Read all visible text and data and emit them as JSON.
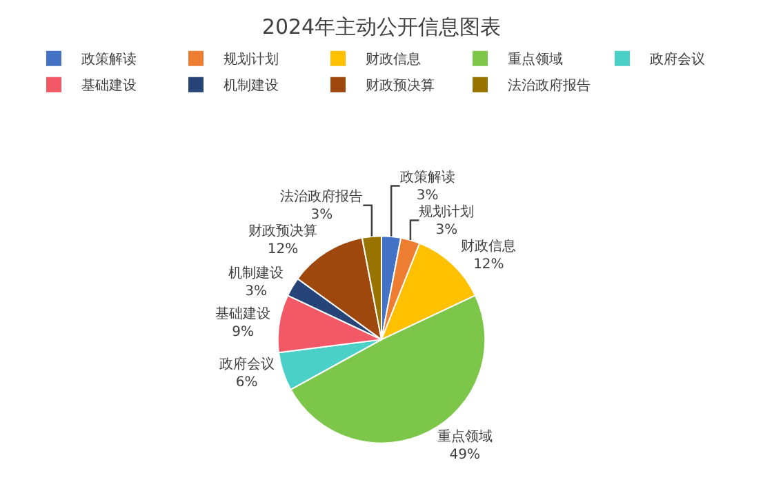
{
  "chart_data": {
    "type": "pie",
    "title": "2024年主动公开信息图表",
    "categories": [
      "政策解读",
      "规划计划",
      "财政信息",
      "重点领域",
      "政府会议",
      "基础建设",
      "机制建设",
      "财政预决算",
      "法治政府报告"
    ],
    "values": [
      3,
      3,
      12,
      49,
      6,
      9,
      3,
      12,
      3
    ],
    "value_labels": [
      "3%",
      "3%",
      "12%",
      "49%",
      "6%",
      "9%",
      "3%",
      "12%",
      "3%"
    ],
    "colors": [
      "#4472c4",
      "#ed7d31",
      "#ffc000",
      "#7cc74a",
      "#4bd0c8",
      "#f25866",
      "#264478",
      "#9e480e",
      "#997300"
    ],
    "legend": "top"
  }
}
